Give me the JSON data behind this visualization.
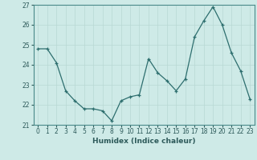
{
  "x": [
    0,
    1,
    2,
    3,
    4,
    5,
    6,
    7,
    8,
    9,
    10,
    11,
    12,
    13,
    14,
    15,
    16,
    17,
    18,
    19,
    20,
    21,
    22,
    23
  ],
  "y": [
    24.8,
    24.8,
    24.1,
    22.7,
    22.2,
    21.8,
    21.8,
    21.7,
    21.2,
    22.2,
    22.4,
    22.5,
    24.3,
    23.6,
    23.2,
    22.7,
    23.3,
    25.4,
    26.2,
    26.9,
    26.0,
    24.6,
    23.7,
    22.3
  ],
  "xlabel": "Humidex (Indice chaleur)",
  "ylabel": "",
  "title": "",
  "line_color": "#2d6e6e",
  "marker_color": "#2d6e6e",
  "bg_color": "#ceeae7",
  "grid_color": "#b8d8d4",
  "ylim": [
    21,
    27
  ],
  "xlim": [
    -0.5,
    23.5
  ],
  "yticks": [
    21,
    22,
    23,
    24,
    25,
    26,
    27
  ],
  "xticks": [
    0,
    1,
    2,
    3,
    4,
    5,
    6,
    7,
    8,
    9,
    10,
    11,
    12,
    13,
    14,
    15,
    16,
    17,
    18,
    19,
    20,
    21,
    22,
    23
  ]
}
